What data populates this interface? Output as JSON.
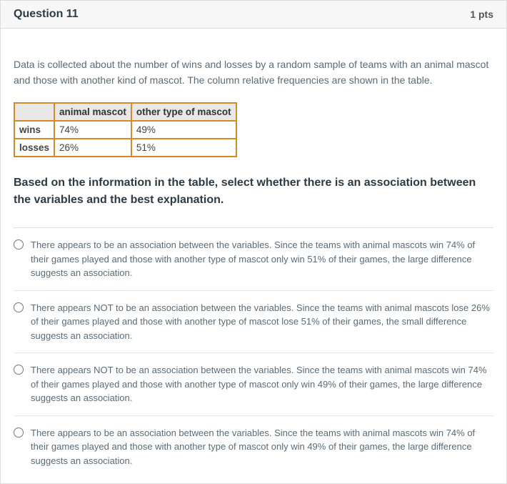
{
  "header": {
    "title": "Question 11",
    "points": "1 pts"
  },
  "intro": "Data is collected about the number of wins and losses by a random sample of teams with an animal mascot and those with another kind of mascot. The column relative frequencies are shown in the table.",
  "table": {
    "border_color": "#d28a2b",
    "header_bg": "#e8e8e8",
    "columns": [
      "",
      "animal mascot",
      "other type of mascot"
    ],
    "rows": [
      {
        "label": "wins",
        "cells": [
          "74%",
          "49%"
        ]
      },
      {
        "label": "losses",
        "cells": [
          "26%",
          "51%"
        ]
      }
    ]
  },
  "prompt": "Based on the information in the table, select whether there is an association between the variables and the best explanation.",
  "options": [
    "There appears to be an association between the variables. Since the teams with animal mascots win 74% of their games played and those with another type of mascot only win 51% of their games, the large difference suggests an association.",
    "There appears NOT to be an association between the variables. Since the teams with animal mascots lose 26% of their games played and those with another type of mascot lose 51% of their games, the small difference suggests an association.",
    "There appears NOT to be an association between the variables. Since the teams with animal mascots win 74% of their games played and those with another type of mascot only win 49% of their games, the large difference suggests an association.",
    "There appears to be an association between the variables. Since the teams with animal mascots win 74% of their games played and those with another type of mascot only win 49% of their games, the large difference suggests an association."
  ]
}
